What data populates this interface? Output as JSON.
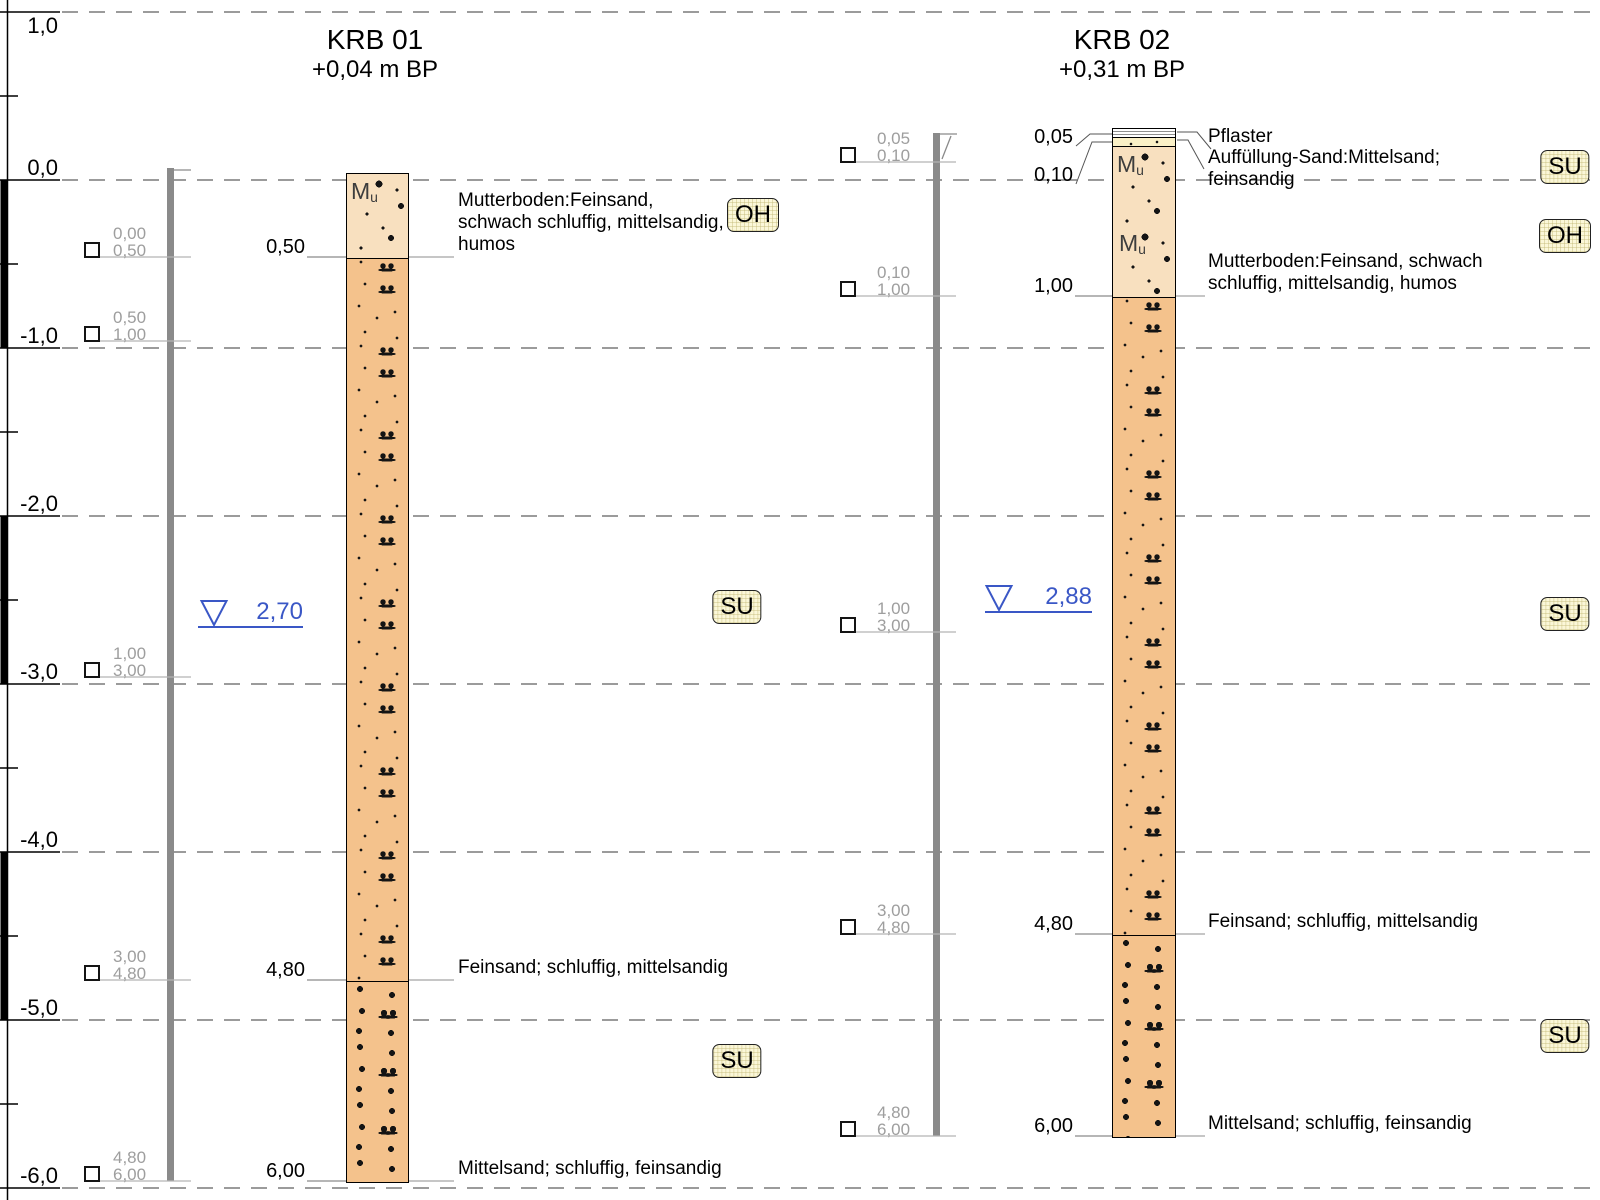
{
  "ruler": {
    "major_labels": [
      "1,0",
      "0,0",
      "-1,0",
      "-2,0",
      "-3,0",
      "-4,0",
      "-5,0",
      "-6,0"
    ]
  },
  "boreholes": [
    {
      "name": "KRB 01",
      "elevation": "+0,04 m BP",
      "samples": [
        {
          "from": "0,00",
          "to": "0,50"
        },
        {
          "from": "0,50",
          "to": "1,00"
        },
        {
          "from": "1,00",
          "to": "3,00"
        },
        {
          "from": "3,00",
          "to": "4,80"
        },
        {
          "from": "4,80",
          "to": "6,00"
        }
      ],
      "layers": [
        {
          "pattern": "mutterboden",
          "symbol": "Mu",
          "bottom_depth": "0,50",
          "description_lines": [
            "Mutterboden:Feinsand,",
            "schwach schluffig, mittelsandig,",
            "humos"
          ]
        },
        {
          "pattern": "feinsand",
          "symbol": "",
          "bottom_depth": "4,80",
          "description_lines": [
            "Feinsand; schluffig, mittelsandig"
          ]
        },
        {
          "pattern": "mittelsand",
          "symbol": "",
          "bottom_depth": "6,00",
          "description_lines": [
            "Mittelsand; schluffig, feinsandig"
          ]
        }
      ],
      "groundwater": {
        "depth": "2,70"
      },
      "badges": [
        {
          "label": "OH"
        },
        {
          "label": "SU"
        },
        {
          "label": "SU"
        }
      ]
    },
    {
      "name": "KRB 02",
      "elevation": "+0,31 m BP",
      "samples": [
        {
          "from": "0,05",
          "to": "0,10"
        },
        {
          "from": "0,10",
          "to": "1,00"
        },
        {
          "from": "1,00",
          "to": "3,00"
        },
        {
          "from": "3,00",
          "to": "4,80"
        },
        {
          "from": "4,80",
          "to": "6,00"
        }
      ],
      "layers": [
        {
          "pattern": "pflaster",
          "symbol": "",
          "bottom_depth": "0,05",
          "description_lines": [
            "Pflaster"
          ]
        },
        {
          "pattern": "auffuellung",
          "symbol": "",
          "bottom_depth": "0,10",
          "description_lines": [
            "Auffüllung-Sand:Mittelsand;",
            "feinsandig"
          ]
        },
        {
          "pattern": "mutterboden",
          "symbol": "Mu",
          "bottom_depth": "1,00",
          "description_lines": [
            "Mutterboden:Feinsand, schwach",
            "schluffig, mittelsandig, humos"
          ]
        },
        {
          "pattern": "feinsand",
          "symbol": "",
          "bottom_depth": "4,80",
          "description_lines": [
            "Feinsand; schluffig, mittelsandig"
          ]
        },
        {
          "pattern": "mittelsand",
          "symbol": "",
          "bottom_depth": "6,00",
          "description_lines": [
            "Mittelsand; schluffig, feinsandig"
          ]
        }
      ],
      "groundwater": {
        "depth": "2,88"
      },
      "badges": [
        {
          "label": "SU"
        },
        {
          "label": "OH"
        },
        {
          "label": "SU"
        },
        {
          "label": "SU"
        }
      ]
    }
  ]
}
